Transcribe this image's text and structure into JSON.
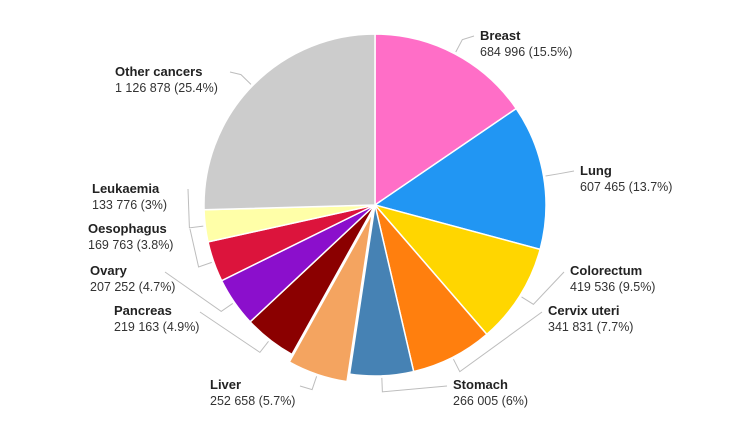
{
  "chart_data": {
    "type": "pie",
    "title": "",
    "slices": [
      {
        "name": "Breast",
        "value": 684996,
        "value_label": "684 996 (15.5%)",
        "percent": 15.5,
        "color": "#ff6ec7"
      },
      {
        "name": "Lung",
        "value": 607465,
        "value_label": "607 465 (13.7%)",
        "percent": 13.7,
        "color": "#2196f3"
      },
      {
        "name": "Colorectum",
        "value": 419536,
        "value_label": "419 536 (9.5%)",
        "percent": 9.5,
        "color": "#ffd600"
      },
      {
        "name": "Cervix uteri",
        "value": 341831,
        "value_label": "341 831 (7.7%)",
        "percent": 7.7,
        "color": "#ff7f0e"
      },
      {
        "name": "Stomach",
        "value": 266005,
        "value_label": "266 005 (6%)",
        "percent": 6.0,
        "color": "#4682b4"
      },
      {
        "name": "Liver",
        "value": 252658,
        "value_label": "252 658 (5.7%)",
        "percent": 5.7,
        "color": "#f4a460",
        "exploded": true
      },
      {
        "name": "Pancreas",
        "value": 219163,
        "value_label": "219 163 (4.9%)",
        "percent": 4.9,
        "color": "#8b0000"
      },
      {
        "name": "Ovary",
        "value": 207252,
        "value_label": "207 252 (4.7%)",
        "percent": 4.7,
        "color": "#8b0fcc"
      },
      {
        "name": "Oesophagus",
        "value": 169763,
        "value_label": "169 763 (3.8%)",
        "percent": 3.8,
        "color": "#dc143c"
      },
      {
        "name": "Leukaemia",
        "value": 133776,
        "value_label": "133 776 (3%)",
        "percent": 3.0,
        "color": "#ffffa8"
      },
      {
        "name": "Other cancers",
        "value": 1126878,
        "value_label": "1 126 878 (25.4%)",
        "percent": 25.4,
        "color": "#cccccc"
      }
    ],
    "start_angle": "12 o'clock",
    "direction": "clockwise",
    "legend": "none (outside labels with leader lines)"
  }
}
